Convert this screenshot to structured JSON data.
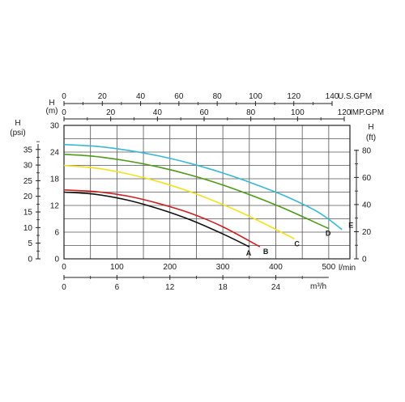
{
  "chart_data": {
    "type": "line",
    "title": "",
    "grid": true,
    "x_axes": {
      "usgpm": {
        "label": "U.S.GPM",
        "range": [
          0,
          140
        ],
        "ticks": [
          "0",
          "20",
          "40",
          "60",
          "80",
          "100",
          "120",
          "140"
        ]
      },
      "impgpm": {
        "label": "IMP.GPM",
        "range": [
          0,
          120
        ],
        "ticks": [
          "0",
          "20",
          "40",
          "60",
          "80",
          "100",
          "120"
        ]
      },
      "lmin": {
        "label": "l/min",
        "range": [
          0,
          540
        ],
        "ticks": [
          "0",
          "100",
          "200",
          "300",
          "400",
          "500"
        ]
      },
      "m3h": {
        "label": "m³/h",
        "range": [
          0,
          32.4
        ],
        "ticks": [
          "0",
          "6",
          "12",
          "18",
          "24"
        ]
      }
    },
    "y_axes": {
      "head_m": {
        "label_line1": "H",
        "label_line2": "(m)",
        "range": [
          0,
          30
        ],
        "ticks": [
          "0",
          "6",
          "12",
          "18",
          "24",
          "30"
        ]
      },
      "head_psi": {
        "label_line1": "H",
        "label_line2": "(psi)",
        "range": [
          0,
          42.7
        ],
        "ticks": [
          "0",
          "5",
          "10",
          "15",
          "20",
          "25",
          "30",
          "35"
        ]
      },
      "head_ft": {
        "label_line1": "H",
        "label_line2": "(ft)",
        "range": [
          0,
          98.4
        ],
        "ticks": [
          "0",
          "20",
          "40",
          "60",
          "80"
        ]
      }
    },
    "series": [
      {
        "name": "A",
        "color": "#111111",
        "x_lmin": [
          0,
          60,
          120,
          180,
          240,
          300,
          350
        ],
        "y_m": [
          15.0,
          14.5,
          13.2,
          11.2,
          8.7,
          5.6,
          2.7
        ]
      },
      {
        "name": "B",
        "color": "#cc1f1f",
        "x_lmin": [
          0,
          60,
          120,
          180,
          240,
          300,
          370
        ],
        "y_m": [
          15.5,
          15.1,
          14.1,
          12.4,
          10.2,
          7.2,
          2.7
        ]
      },
      {
        "name": "C",
        "color": "#f1e21f",
        "x_lmin": [
          0,
          60,
          120,
          180,
          240,
          300,
          360,
          435
        ],
        "y_m": [
          21.0,
          20.4,
          19.1,
          17.3,
          15.0,
          12.2,
          9.0,
          4.5
        ]
      },
      {
        "name": "D",
        "color": "#4e9a16",
        "x_lmin": [
          0,
          60,
          120,
          180,
          240,
          300,
          360,
          420,
          500
        ],
        "y_m": [
          23.5,
          23.0,
          22.0,
          20.6,
          18.8,
          16.6,
          14.0,
          11.1,
          6.8
        ]
      },
      {
        "name": "E",
        "color": "#39b8d4",
        "x_lmin": [
          0,
          60,
          120,
          180,
          240,
          300,
          360,
          420,
          480,
          525
        ],
        "y_m": [
          25.7,
          25.3,
          24.4,
          23.1,
          21.4,
          19.3,
          16.8,
          14.0,
          10.5,
          6.6
        ]
      }
    ]
  }
}
